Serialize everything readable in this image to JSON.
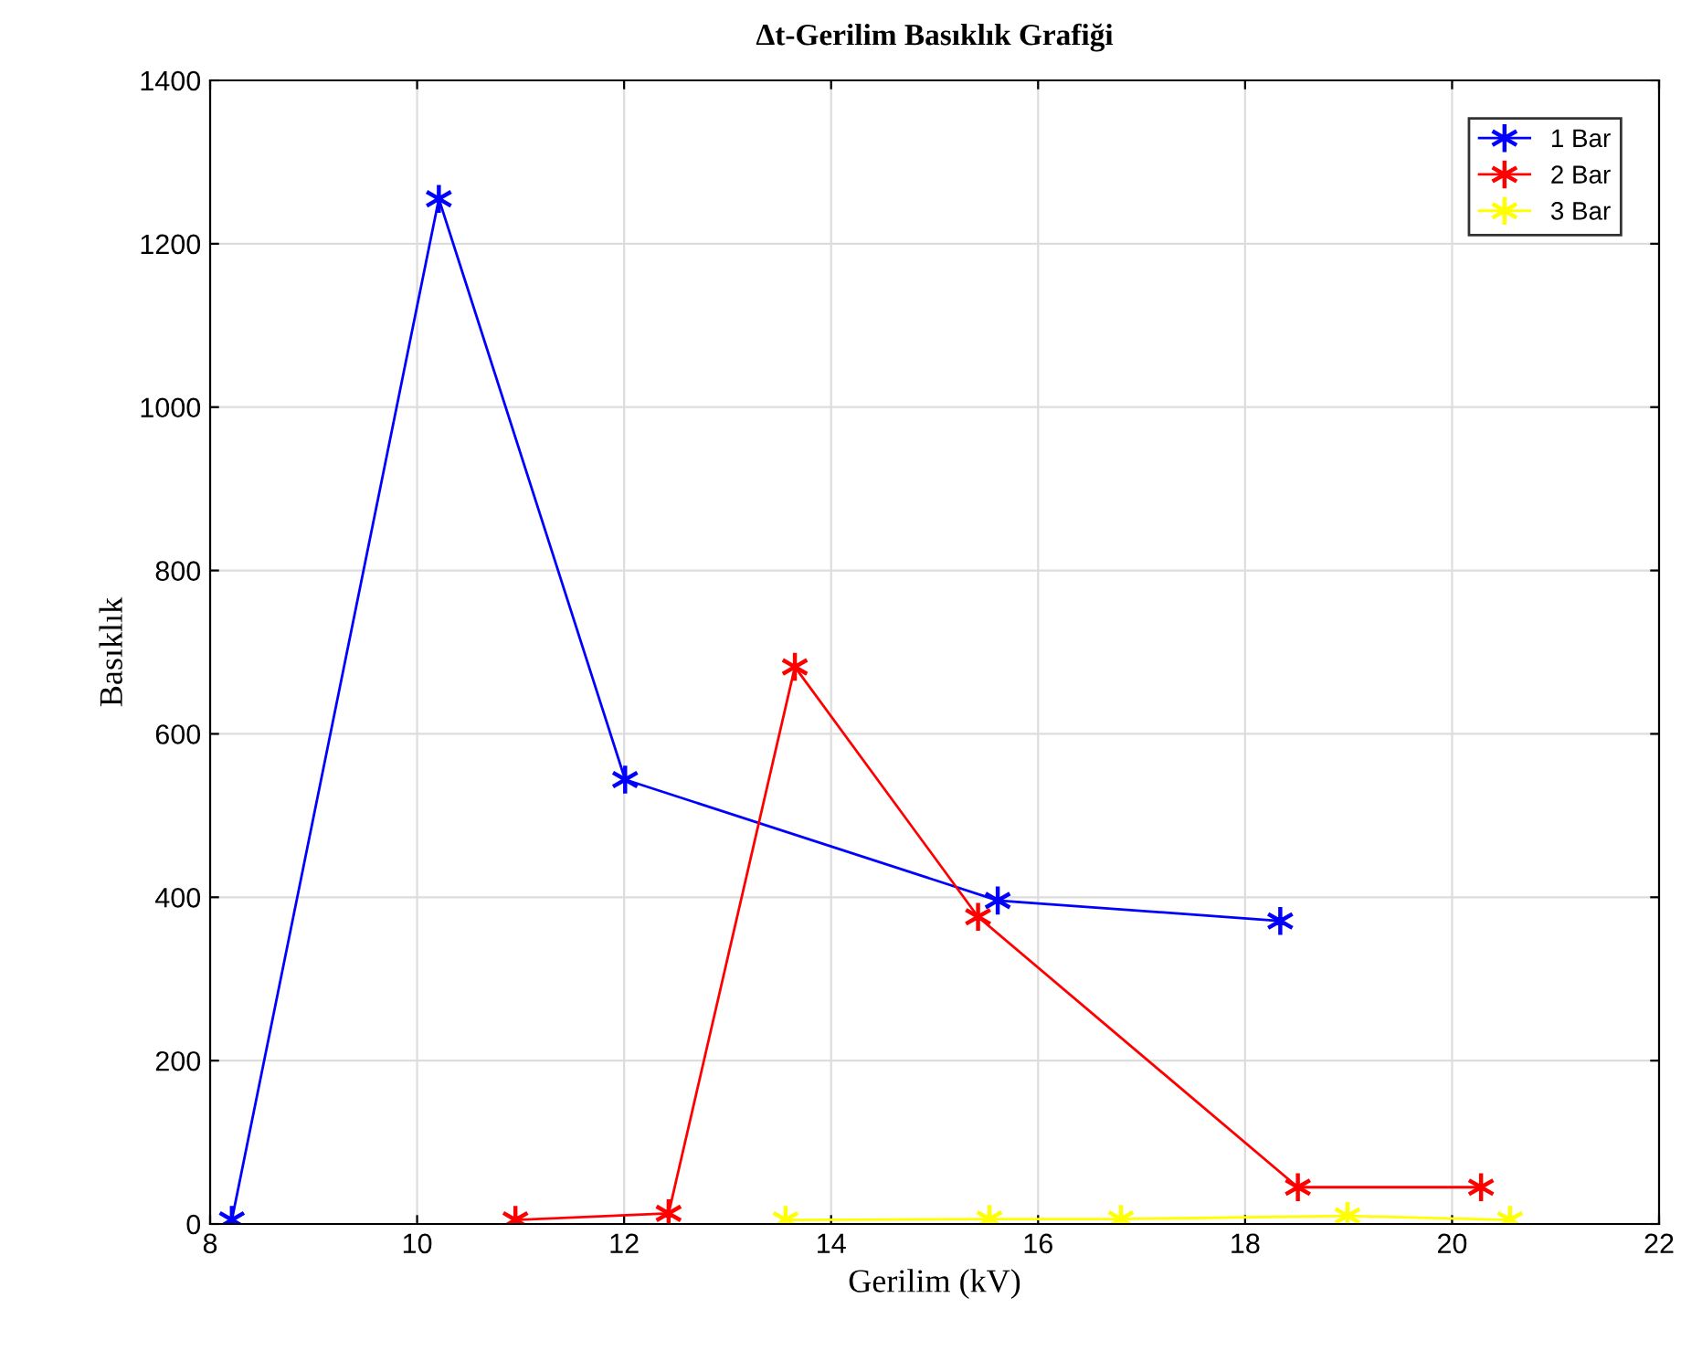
{
  "chart_data": {
    "type": "line",
    "title": "Δt-Gerilim Basıklık Grafiği",
    "xlabel": "Gerilim (kV)",
    "ylabel": "Basıklık",
    "xlim": [
      8,
      22
    ],
    "xticks": [
      8,
      10,
      12,
      14,
      16,
      18,
      20,
      22
    ],
    "ylim": [
      0,
      1400
    ],
    "yticks": [
      0,
      200,
      400,
      600,
      800,
      1000,
      1200,
      1400
    ],
    "grid": true,
    "legend": "top right",
    "marker": "cross",
    "line_style": "solid",
    "series": [
      {
        "name": "1 Bar",
        "color": "#0000ff",
        "x": [
          8.21,
          10.21,
          12.01,
          15.61,
          18.34
        ],
        "values": [
          5,
          1255,
          544,
          396,
          371
        ]
      },
      {
        "name": "2 Bar",
        "color": "#ff0000",
        "x": [
          10.95,
          12.43,
          13.65,
          15.42,
          18.51,
          20.28
        ],
        "values": [
          5,
          13,
          682,
          376,
          45,
          45
        ]
      },
      {
        "name": "3 Bar",
        "color": "#ffff00",
        "x": [
          13.56,
          15.53,
          16.8,
          18.99,
          20.56
        ],
        "values": [
          5,
          6,
          6,
          10,
          5
        ]
      }
    ]
  }
}
